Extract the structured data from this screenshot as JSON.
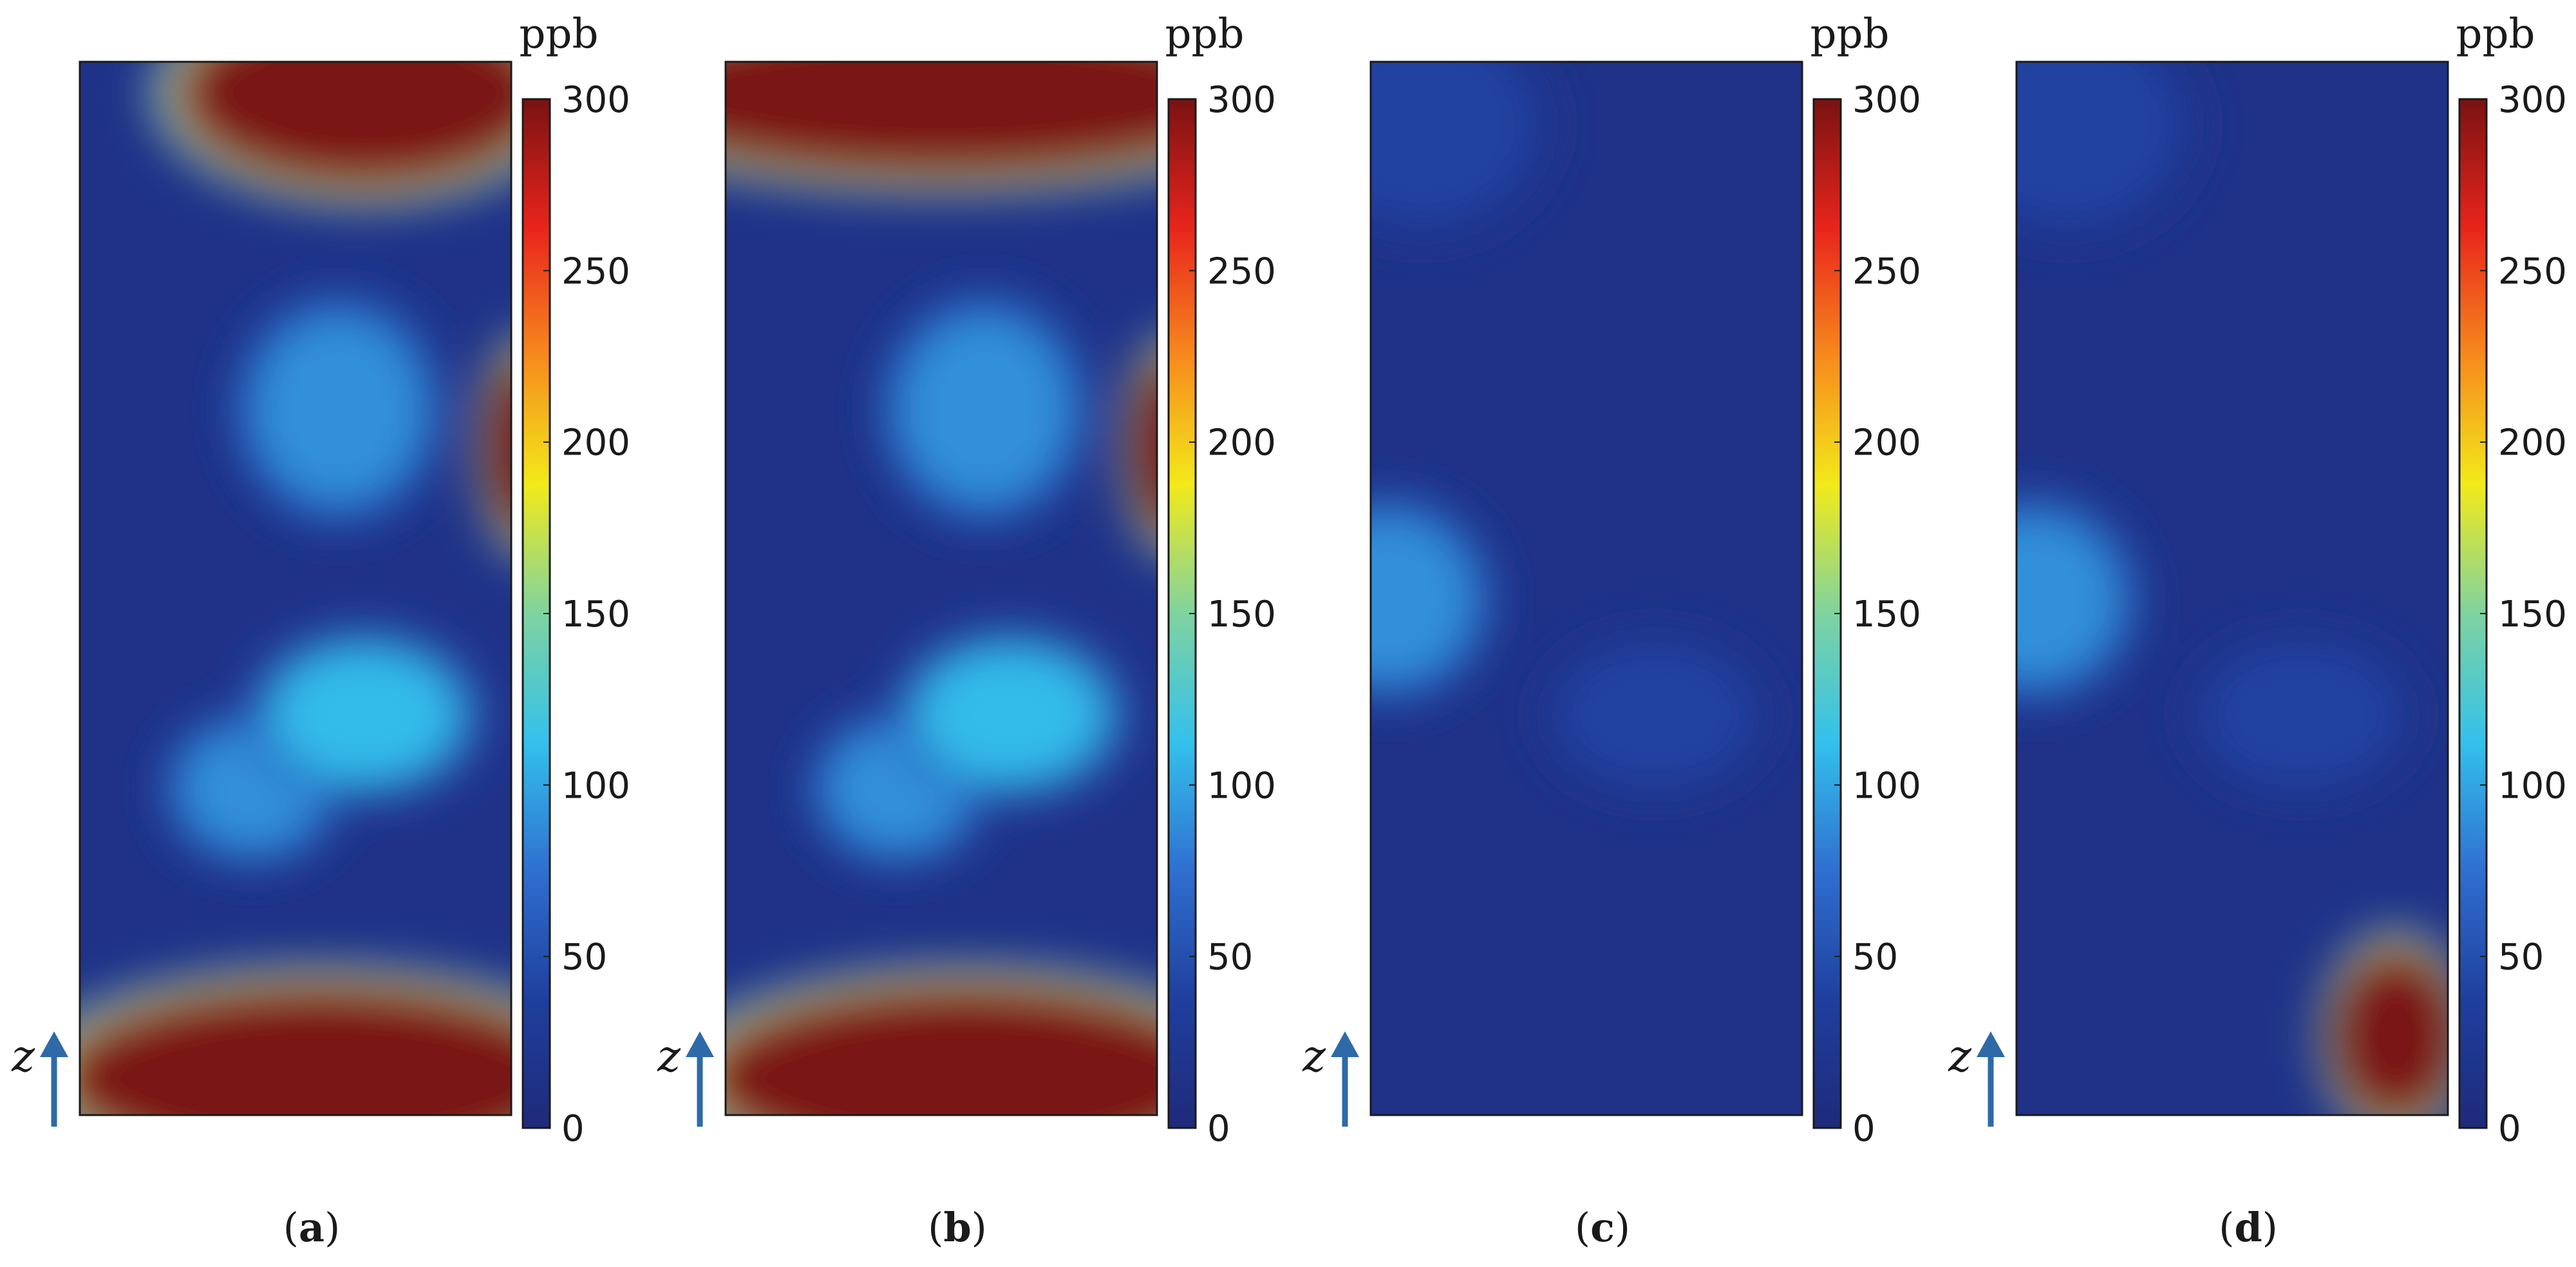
{
  "chart_data": [
    {
      "type": "heatmap",
      "panel_label": "a",
      "caption": [
        "(",
        "a",
        ")"
      ],
      "unit": "ppb",
      "axis_label": "z",
      "colorbar": {
        "min": 0,
        "max": 300,
        "ticks": [
          "0",
          "50",
          "100",
          "150",
          "200",
          "250",
          "300"
        ]
      },
      "hotspots": [
        {
          "region": "top center-right",
          "level": 300
        },
        {
          "region": "right edge, upper middle",
          "level": 300
        },
        {
          "region": "bottom, wide",
          "level": 300
        },
        {
          "region": "center",
          "level": 110
        },
        {
          "region": "lower-left center",
          "level": 90
        },
        {
          "region": "upper center",
          "level": 90
        },
        {
          "region": "background",
          "level": 15
        }
      ]
    },
    {
      "type": "heatmap",
      "panel_label": "b",
      "caption": [
        "(",
        "b",
        ")"
      ],
      "unit": "ppb",
      "axis_label": "z",
      "colorbar": {
        "min": 0,
        "max": 300,
        "ticks": [
          "0",
          "50",
          "100",
          "150",
          "200",
          "250",
          "300"
        ]
      },
      "hotspots": [
        {
          "region": "top band, full width",
          "level": 300
        },
        {
          "region": "right edge, upper middle",
          "level": 300
        },
        {
          "region": "bottom, wide",
          "level": 300
        },
        {
          "region": "center",
          "level": 110
        },
        {
          "region": "lower-left center",
          "level": 90
        },
        {
          "region": "upper center",
          "level": 90
        },
        {
          "region": "background",
          "level": 15
        }
      ]
    },
    {
      "type": "heatmap",
      "panel_label": "c",
      "caption": [
        "(",
        "c",
        ")"
      ],
      "unit": "ppb",
      "axis_label": "z",
      "colorbar": {
        "min": 0,
        "max": 300,
        "ticks": [
          "0",
          "50",
          "100",
          "150",
          "200",
          "250",
          "300"
        ]
      },
      "hotspots": [
        {
          "region": "left edge, middle",
          "level": 90
        },
        {
          "region": "center",
          "level": 40
        },
        {
          "region": "top-left corner",
          "level": 40
        },
        {
          "region": "background",
          "level": 15
        }
      ]
    },
    {
      "type": "heatmap",
      "panel_label": "d",
      "caption": [
        "(",
        "d",
        ")"
      ],
      "unit": "ppb",
      "axis_label": "z",
      "colorbar": {
        "min": 0,
        "max": 300,
        "ticks": [
          "0",
          "50",
          "100",
          "150",
          "200",
          "250",
          "300"
        ]
      },
      "hotspots": [
        {
          "region": "bottom-right corner",
          "level": 300
        },
        {
          "region": "left edge, middle",
          "level": 90
        },
        {
          "region": "center",
          "level": 40
        },
        {
          "region": "top-left corner",
          "level": 40
        },
        {
          "region": "background",
          "level": 15
        }
      ]
    }
  ],
  "colors": {
    "jet_stops": [
      "#1f2a7a",
      "#1f3f9e",
      "#2f6fd0",
      "#33c1ec",
      "#7fd3a0",
      "#f2ea1a",
      "#f78a1d",
      "#e8241c",
      "#7a1212"
    ],
    "axis_arrow": "#2f6aa8",
    "frame": "#1a1a1a"
  }
}
